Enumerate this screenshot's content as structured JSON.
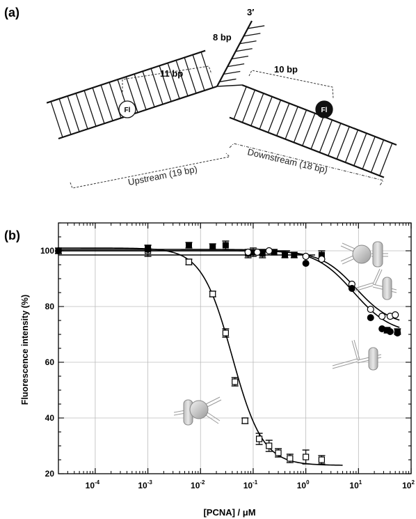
{
  "panel_a": {
    "label_open": "(",
    "label_letter": "a",
    "label_close": ")",
    "three_prime": "3′",
    "flap_bp": "8 bp",
    "upstream_span": "11 bp",
    "downstream_span": "10 bp",
    "fl_label": "Fl",
    "upstream_label": "Upstream (19 bp)",
    "downstream_label": "Downstream (18 bp)"
  },
  "panel_b": {
    "label_open": "(",
    "label_letter": "b",
    "label_close": ")",
    "xlabel": "[PCNA] / μM",
    "ylabel": "Fluorescence intensity (%)"
  },
  "chart_data": {
    "type": "scatter",
    "x_scale": "log",
    "xlim": [
      2e-05,
      100
    ],
    "ylim": [
      20,
      110
    ],
    "x_ticks": [
      {
        "value": 0.0001,
        "base": "10",
        "exp": "-4"
      },
      {
        "value": 0.001,
        "base": "10",
        "exp": "-3"
      },
      {
        "value": 0.01,
        "base": "10",
        "exp": "-2"
      },
      {
        "value": 0.1,
        "base": "10",
        "exp": "-1"
      },
      {
        "value": 1,
        "base": "10",
        "exp": "0"
      },
      {
        "value": 10,
        "base": "10",
        "exp": "1"
      },
      {
        "value": 100,
        "base": "10",
        "exp": "2"
      }
    ],
    "y_ticks": [
      20,
      40,
      60,
      80,
      100
    ],
    "grid": true,
    "series": [
      {
        "marker": "open-square",
        "x": [
          0.001,
          0.006,
          0.017,
          0.03,
          0.045,
          0.07,
          0.13,
          0.2,
          0.3,
          0.5,
          1.0,
          2.0
        ],
        "y": [
          100,
          96,
          84.5,
          70.5,
          53,
          39,
          32.5,
          30,
          27.5,
          25.5,
          26,
          25
        ],
        "err": [
          2,
          1,
          1,
          1.5,
          1.5,
          1,
          2,
          2,
          1.5,
          1.5,
          2.5,
          1.5
        ]
      },
      {
        "marker": "filled-square",
        "x": [
          1e-05,
          0.001,
          0.006,
          0.017,
          0.03,
          0.08,
          0.1,
          0.15,
          0.25,
          0.4,
          0.6,
          2.0,
          35,
          55
        ],
        "y": [
          100,
          101,
          102,
          101.5,
          102,
          99,
          99.5,
          99,
          99.5,
          98.5,
          98.5,
          98.5,
          71.5,
          71
        ],
        "err": [
          1,
          1,
          1,
          1,
          1.5,
          1.5,
          1.5,
          1.5,
          1,
          1,
          1,
          1.5,
          1,
          1
        ]
      },
      {
        "marker": "open-circle",
        "x": [
          0.08,
          0.12,
          0.2,
          1.0,
          2.0,
          7.5,
          17,
          28,
          40,
          50
        ],
        "y": [
          99.5,
          99.5,
          100,
          98,
          97,
          88,
          79,
          76.5,
          76.5,
          77
        ],
        "err": []
      },
      {
        "marker": "filled-circle",
        "x": [
          1e-05,
          0.001,
          1.0,
          7.5,
          17,
          28,
          40,
          55
        ],
        "y": [
          100,
          100.5,
          95.5,
          86.5,
          76,
          72,
          71,
          70.5
        ],
        "err": []
      }
    ],
    "fits": [
      {
        "kind": "sigmoid",
        "top": 101,
        "bottom": 23,
        "x50": 0.04,
        "slope": 1.5,
        "x_from": 2e-05,
        "x_to": 5
      },
      {
        "kind": "sigmoid",
        "top": 100.5,
        "bottom": 70,
        "x50": 8,
        "slope": 1.2,
        "x_from": 2e-05,
        "x_to": 60
      },
      {
        "kind": "sigmoid",
        "top": 100,
        "bottom": 73,
        "x50": 9,
        "slope": 1.3,
        "x_from": 2e-05,
        "x_to": 60
      },
      {
        "kind": "flat",
        "y": 98.5,
        "x_from": 2e-05,
        "x_to": 1.5
      },
      {
        "kind": "flat",
        "y": 100,
        "x_from": 2e-05,
        "x_to": 0.5
      }
    ]
  }
}
